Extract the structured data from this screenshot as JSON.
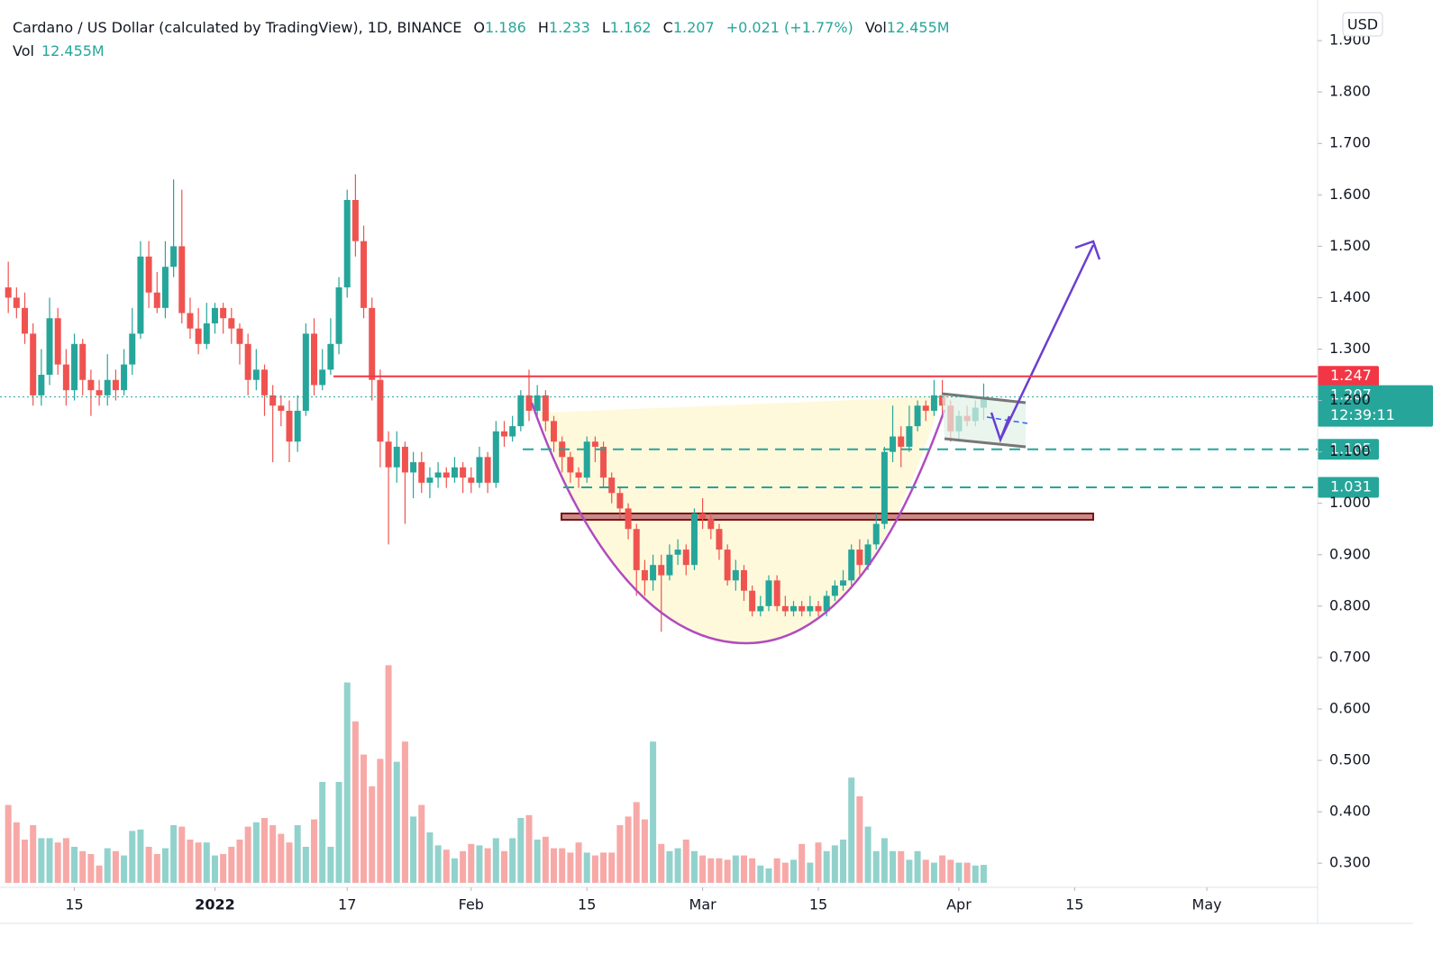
{
  "header": {
    "title": "Cardano / US Dollar (calculated by TradingView), 1D, BINANCE",
    "ohlc": [
      {
        "label": "O",
        "value": "1.186"
      },
      {
        "label": "H",
        "value": "1.233"
      },
      {
        "label": "L",
        "value": "1.162"
      },
      {
        "label": "C",
        "value": "1.207"
      }
    ],
    "change": "+0.021 (+1.77%)",
    "vol_label": "Vol",
    "vol_value": "12.455M"
  },
  "volume_legend": {
    "label": "Vol",
    "value": "12.455M"
  },
  "currency": "USD",
  "chart_data": {
    "type": "candlestick",
    "open": [
      1.42,
      1.4,
      1.38,
      1.33,
      1.21,
      1.25,
      1.36,
      1.27,
      1.22,
      1.31,
      1.24,
      1.22,
      1.21,
      1.24,
      1.22,
      1.27,
      1.33,
      1.48,
      1.41,
      1.38,
      1.46,
      1.5,
      1.37,
      1.34,
      1.31,
      1.35,
      1.38,
      1.36,
      1.34,
      1.31,
      1.24,
      1.26,
      1.21,
      1.19,
      1.18,
      1.12,
      1.18,
      1.33,
      1.23,
      1.26,
      1.31,
      1.42,
      1.59,
      1.51,
      1.38,
      1.24,
      1.12,
      1.07,
      1.11,
      1.06,
      1.08,
      1.04,
      1.05,
      1.06,
      1.05,
      1.07,
      1.05,
      1.04,
      1.09,
      1.04,
      1.14,
      1.13,
      1.15,
      1.21,
      1.18,
      1.21,
      1.16,
      1.12,
      1.09,
      1.06,
      1.05,
      1.12,
      1.11,
      1.05,
      1.02,
      0.99,
      0.95,
      0.87,
      0.85,
      0.88,
      0.86,
      0.9,
      0.91,
      0.88,
      0.98,
      0.97,
      0.95,
      0.91,
      0.85,
      0.87,
      0.83,
      0.79,
      0.8,
      0.85,
      0.8,
      0.79,
      0.8,
      0.79,
      0.8,
      0.79,
      0.82,
      0.84,
      0.85,
      0.91,
      0.88,
      0.92,
      0.96,
      1.1,
      1.13,
      1.11,
      1.15,
      1.19,
      1.18,
      1.21,
      1.19,
      1.14,
      1.17,
      1.16,
      1.186
    ],
    "high": [
      1.47,
      1.42,
      1.41,
      1.35,
      1.3,
      1.4,
      1.38,
      1.3,
      1.33,
      1.32,
      1.26,
      1.24,
      1.29,
      1.26,
      1.3,
      1.38,
      1.51,
      1.51,
      1.45,
      1.51,
      1.63,
      1.61,
      1.4,
      1.38,
      1.39,
      1.39,
      1.39,
      1.38,
      1.35,
      1.33,
      1.3,
      1.27,
      1.23,
      1.21,
      1.2,
      1.21,
      1.35,
      1.36,
      1.3,
      1.36,
      1.44,
      1.61,
      1.64,
      1.54,
      1.4,
      1.26,
      1.14,
      1.14,
      1.12,
      1.1,
      1.1,
      1.07,
      1.08,
      1.07,
      1.09,
      1.08,
      1.07,
      1.11,
      1.1,
      1.16,
      1.16,
      1.17,
      1.22,
      1.26,
      1.23,
      1.22,
      1.17,
      1.13,
      1.1,
      1.07,
      1.13,
      1.13,
      1.12,
      1.06,
      1.03,
      1.0,
      0.96,
      0.89,
      0.9,
      0.9,
      0.92,
      0.93,
      0.92,
      0.99,
      1.01,
      0.98,
      0.96,
      0.92,
      0.89,
      0.88,
      0.84,
      0.82,
      0.86,
      0.86,
      0.82,
      0.81,
      0.81,
      0.82,
      0.81,
      0.83,
      0.85,
      0.87,
      0.92,
      0.93,
      0.93,
      0.98,
      1.11,
      1.19,
      1.15,
      1.19,
      1.2,
      1.2,
      1.24,
      1.24,
      1.2,
      1.18,
      1.19,
      1.2,
      1.233
    ],
    "low": [
      1.37,
      1.36,
      1.31,
      1.19,
      1.19,
      1.23,
      1.25,
      1.19,
      1.2,
      1.21,
      1.17,
      1.19,
      1.19,
      1.2,
      1.21,
      1.25,
      1.32,
      1.38,
      1.37,
      1.36,
      1.44,
      1.35,
      1.32,
      1.29,
      1.3,
      1.33,
      1.33,
      1.31,
      1.27,
      1.21,
      1.22,
      1.17,
      1.08,
      1.15,
      1.08,
      1.1,
      1.17,
      1.21,
      1.22,
      1.25,
      1.29,
      1.4,
      1.48,
      1.36,
      1.2,
      1.07,
      0.92,
      1.04,
      0.96,
      1.01,
      1.02,
      1.01,
      1.03,
      1.03,
      1.04,
      1.02,
      1.02,
      1.03,
      1.02,
      1.03,
      1.11,
      1.12,
      1.14,
      1.16,
      1.17,
      1.14,
      1.1,
      1.06,
      1.04,
      1.03,
      1.04,
      1.08,
      1.03,
      1.0,
      0.97,
      0.93,
      0.82,
      0.82,
      0.83,
      0.75,
      0.85,
      0.88,
      0.86,
      0.87,
      0.95,
      0.93,
      0.89,
      0.84,
      0.83,
      0.81,
      0.78,
      0.78,
      0.79,
      0.79,
      0.78,
      0.78,
      0.78,
      0.78,
      0.78,
      0.78,
      0.81,
      0.83,
      0.84,
      0.86,
      0.87,
      0.91,
      0.95,
      1.08,
      1.07,
      1.1,
      1.14,
      1.16,
      1.17,
      1.17,
      1.12,
      1.12,
      1.15,
      1.15,
      1.162
    ],
    "close": [
      1.4,
      1.38,
      1.33,
      1.21,
      1.25,
      1.36,
      1.27,
      1.22,
      1.31,
      1.24,
      1.22,
      1.21,
      1.24,
      1.22,
      1.27,
      1.33,
      1.48,
      1.41,
      1.38,
      1.46,
      1.5,
      1.37,
      1.34,
      1.31,
      1.35,
      1.38,
      1.36,
      1.34,
      1.31,
      1.24,
      1.26,
      1.21,
      1.19,
      1.18,
      1.12,
      1.18,
      1.33,
      1.23,
      1.26,
      1.31,
      1.42,
      1.59,
      1.51,
      1.38,
      1.24,
      1.12,
      1.07,
      1.11,
      1.06,
      1.08,
      1.04,
      1.05,
      1.06,
      1.05,
      1.07,
      1.05,
      1.04,
      1.09,
      1.04,
      1.14,
      1.13,
      1.15,
      1.21,
      1.18,
      1.21,
      1.16,
      1.12,
      1.09,
      1.06,
      1.05,
      1.12,
      1.11,
      1.05,
      1.02,
      0.99,
      0.95,
      0.87,
      0.85,
      0.88,
      0.86,
      0.9,
      0.91,
      0.88,
      0.98,
      0.97,
      0.95,
      0.91,
      0.85,
      0.87,
      0.83,
      0.79,
      0.8,
      0.85,
      0.8,
      0.79,
      0.8,
      0.79,
      0.8,
      0.79,
      0.82,
      0.84,
      0.85,
      0.91,
      0.88,
      0.92,
      0.96,
      1.1,
      1.13,
      1.11,
      1.15,
      1.19,
      1.18,
      1.21,
      1.19,
      1.14,
      1.17,
      1.16,
      1.186,
      1.207
    ],
    "volume": [
      54,
      42,
      30,
      40,
      31,
      31,
      28,
      31,
      25,
      22,
      20,
      12,
      24,
      22,
      19,
      36,
      37,
      25,
      20,
      24,
      40,
      39,
      30,
      28,
      28,
      19,
      20,
      25,
      30,
      39,
      42,
      45,
      40,
      34,
      28,
      40,
      25,
      44,
      70,
      25,
      70,
      139,
      112,
      89,
      67,
      86,
      151,
      84,
      98,
      46,
      54,
      35,
      26,
      23,
      17,
      22,
      27,
      26,
      24,
      31,
      22,
      31,
      45,
      47,
      30,
      32,
      24,
      24,
      21,
      28,
      21,
      19,
      21,
      21,
      40,
      46,
      56,
      44,
      98,
      27,
      22,
      24,
      30,
      22,
      19,
      17,
      17,
      16,
      19,
      19,
      17,
      12,
      10,
      17,
      14,
      16,
      27,
      14,
      28,
      22,
      26,
      30,
      73,
      60,
      39,
      22,
      31,
      22,
      22,
      16,
      22,
      16,
      14,
      19,
      16,
      14,
      14,
      12,
      12.455
    ],
    "up_color": "#26a69a",
    "down_color": "#ef5350",
    "ylim": [
      0.253,
      1.979
    ],
    "yticks": [
      {
        "value": 0.3,
        "label": "0.300"
      },
      {
        "value": 0.4,
        "label": "0.400"
      },
      {
        "value": 0.5,
        "label": "0.500"
      },
      {
        "value": 0.6,
        "label": "0.600"
      },
      {
        "value": 0.7,
        "label": "0.700"
      },
      {
        "value": 0.8,
        "label": "0.800"
      },
      {
        "value": 0.9,
        "label": "0.900"
      },
      {
        "value": 1.0,
        "label": "1.000"
      },
      {
        "value": 1.1,
        "label": "1.100"
      },
      {
        "value": 1.2,
        "label": "1.200"
      },
      {
        "value": 1.3,
        "label": "1.300"
      },
      {
        "value": 1.4,
        "label": "1.400"
      },
      {
        "value": 1.5,
        "label": "1.500"
      },
      {
        "value": 1.6,
        "label": "1.600"
      },
      {
        "value": 1.7,
        "label": "1.700"
      },
      {
        "value": 1.8,
        "label": "1.800"
      },
      {
        "value": 1.9,
        "label": "1.900"
      }
    ],
    "xlim": [
      -1,
      158.4
    ],
    "xticks": [
      {
        "value": 8,
        "label": "15"
      },
      {
        "value": 25,
        "label": "2022"
      },
      {
        "value": 41,
        "label": "17"
      },
      {
        "value": 56,
        "label": "Feb"
      },
      {
        "value": 70,
        "label": "15"
      },
      {
        "value": 84,
        "label": "Mar"
      },
      {
        "value": 98,
        "label": "15"
      },
      {
        "value": 115,
        "label": "Apr"
      },
      {
        "value": 129,
        "label": "15"
      },
      {
        "value": 145,
        "label": "May"
      }
    ],
    "levels": [
      {
        "value": 1.247,
        "color": "#f23645"
      },
      {
        "value": 1.207,
        "color": "#26a69a"
      },
      {
        "value": 1.105,
        "color": "#26a69a"
      },
      {
        "value": 1.031,
        "color": "#26a69a"
      }
    ],
    "countdown": "12:39:11"
  }
}
